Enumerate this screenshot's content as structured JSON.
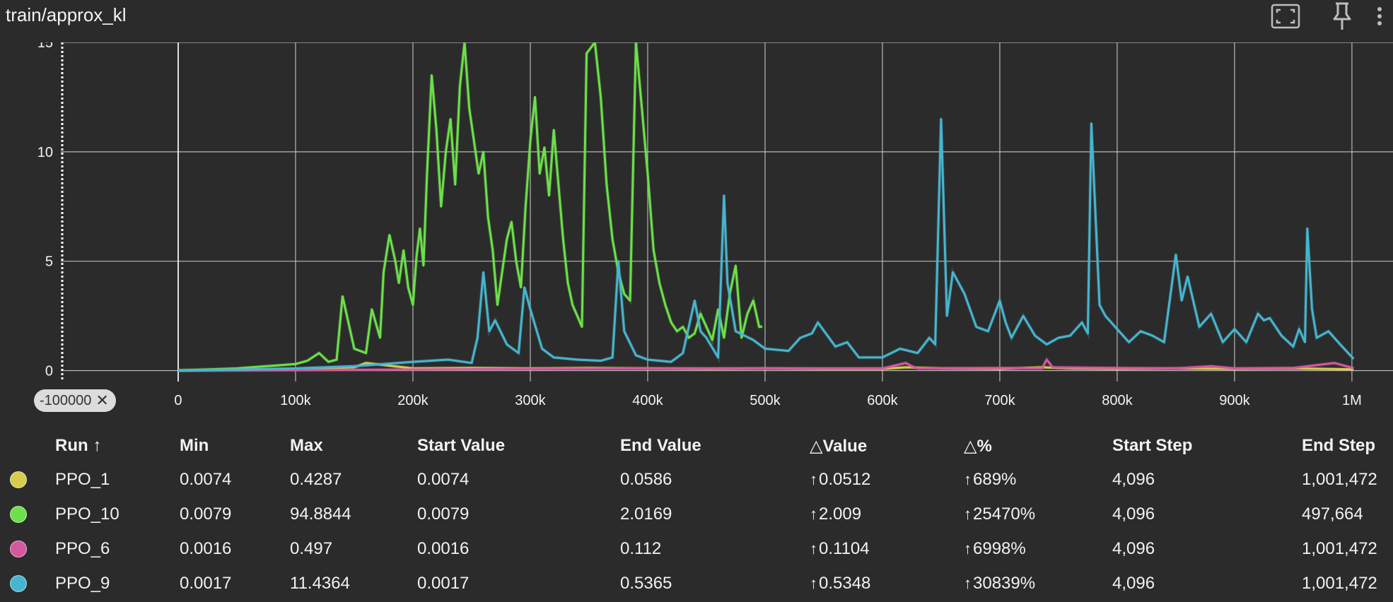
{
  "card": {
    "title": "train/approx_kl",
    "fullscreen_icon": "fullscreen-icon",
    "pin_icon": "pin-icon",
    "more_icon": "more-vertical-icon"
  },
  "x_filter_chip": {
    "label": "-100000",
    "close_icon": "close-icon"
  },
  "chart_data": {
    "type": "line",
    "title": "train/approx_kl",
    "xlabel": "",
    "ylabel": "",
    "xlim": [
      -100000,
      1035000
    ],
    "ylim": [
      -0.5,
      15
    ],
    "x_ticks": [
      0,
      100000,
      200000,
      300000,
      400000,
      500000,
      600000,
      700000,
      800000,
      900000,
      1000000
    ],
    "x_tick_labels": [
      "0",
      "100k",
      "200k",
      "300k",
      "400k",
      "500k",
      "600k",
      "700k",
      "800k",
      "900k",
      "1M"
    ],
    "y_ticks": [
      0,
      5,
      10,
      15
    ],
    "y_tick_labels": [
      "0",
      "5",
      "10",
      "15"
    ],
    "grid": true,
    "colors": {
      "background": "#2b2b2b",
      "grid": "#d0d0d0"
    },
    "series": [
      {
        "name": "PPO_1",
        "color": "#d6cc4f",
        "x": [
          0,
          50000,
          100000,
          150000,
          160000,
          200000,
          250000,
          300000,
          350000,
          400000,
          450000,
          500000,
          550000,
          600000,
          620000,
          650000,
          700000,
          736000,
          760000,
          800000,
          850000,
          900000,
          950000,
          1001472
        ],
        "y": [
          0.007,
          0.03,
          0.05,
          0.15,
          0.35,
          0.1,
          0.12,
          0.1,
          0.12,
          0.1,
          0.08,
          0.1,
          0.08,
          0.08,
          0.15,
          0.1,
          0.08,
          0.15,
          0.1,
          0.08,
          0.1,
          0.08,
          0.1,
          0.0586
        ]
      },
      {
        "name": "PPO_10",
        "color": "#6ce04a",
        "x": [
          0,
          50000,
          100000,
          110000,
          120000,
          128000,
          135000,
          140000,
          150000,
          160000,
          165000,
          172000,
          175000,
          180000,
          185000,
          188000,
          192000,
          196000,
          200000,
          203000,
          206000,
          209000,
          212000,
          216000,
          220000,
          224000,
          228000,
          232000,
          236000,
          240000,
          244000,
          248000,
          252000,
          256000,
          260000,
          264000,
          268000,
          272000,
          276000,
          280000,
          284000,
          288000,
          292000,
          296000,
          300000,
          304000,
          308000,
          312000,
          316000,
          320000,
          324000,
          328000,
          332000,
          336000,
          340000,
          344000,
          348000,
          355000,
          360000,
          365000,
          370000,
          375000,
          380000,
          385000,
          390000,
          395000,
          400000,
          405000,
          410000,
          415000,
          420000,
          425000,
          430000,
          435000,
          440000,
          445000,
          450000,
          455000,
          460000,
          465000,
          470000,
          475000,
          480000,
          485000,
          490000,
          495000,
          497664
        ],
        "y": [
          0.0079,
          0.1,
          0.3,
          0.45,
          0.8,
          0.4,
          0.5,
          3.4,
          1.0,
          0.8,
          2.8,
          1.5,
          4.5,
          6.2,
          5.0,
          4.0,
          5.5,
          3.8,
          3.0,
          5.2,
          6.5,
          4.8,
          9.0,
          13.5,
          11.0,
          7.5,
          10.0,
          11.5,
          8.5,
          13.0,
          15.0,
          12.0,
          10.5,
          9.0,
          10.0,
          7.0,
          5.5,
          3.0,
          4.5,
          6.0,
          6.8,
          5.0,
          3.8,
          7.5,
          10.5,
          12.5,
          9.0,
          10.2,
          8.0,
          11.0,
          8.5,
          6.0,
          4.0,
          3.0,
          2.5,
          2.0,
          14.5,
          15.0,
          12.5,
          8.5,
          6.0,
          4.5,
          3.5,
          3.2,
          15.0,
          12.0,
          9.0,
          5.5,
          4.0,
          3.0,
          2.2,
          1.8,
          2.0,
          1.5,
          1.7,
          2.6,
          2.0,
          1.4,
          2.8,
          1.5,
          3.5,
          4.8,
          1.5,
          2.6,
          3.2,
          2.0,
          2.0169
        ]
      },
      {
        "name": "PPO_6",
        "color": "#d4589d",
        "x": [
          0,
          100000,
          200000,
          300000,
          400000,
          500000,
          600000,
          620000,
          625000,
          630000,
          700000,
          736000,
          740000,
          745000,
          800000,
          850000,
          880000,
          900000,
          950000,
          985000,
          1001472
        ],
        "y": [
          0.0016,
          0.02,
          0.05,
          0.08,
          0.1,
          0.1,
          0.1,
          0.35,
          0.2,
          0.1,
          0.12,
          0.1,
          0.5,
          0.15,
          0.12,
          0.1,
          0.2,
          0.1,
          0.12,
          0.35,
          0.112
        ]
      },
      {
        "name": "PPO_9",
        "color": "#47b5cf",
        "x": [
          0,
          50000,
          100000,
          150000,
          200000,
          230000,
          250000,
          255000,
          260000,
          265000,
          270000,
          280000,
          290000,
          295000,
          300000,
          310000,
          320000,
          340000,
          360000,
          370000,
          375000,
          380000,
          390000,
          400000,
          420000,
          430000,
          440000,
          445000,
          450000,
          460000,
          465000,
          468000,
          475000,
          490000,
          500000,
          520000,
          530000,
          540000,
          545000,
          560000,
          570000,
          580000,
          600000,
          615000,
          630000,
          640000,
          645000,
          650000,
          655000,
          660000,
          670000,
          680000,
          690000,
          700000,
          705000,
          710000,
          720000,
          730000,
          740000,
          750000,
          760000,
          770000,
          775000,
          778000,
          785000,
          790000,
          800000,
          810000,
          820000,
          830000,
          840000,
          850000,
          855000,
          860000,
          870000,
          880000,
          890000,
          900000,
          910000,
          920000,
          925000,
          930000,
          940000,
          950000,
          955000,
          960000,
          962000,
          966000,
          970000,
          980000,
          990000,
          1001472
        ],
        "y": [
          0.0017,
          0.05,
          0.1,
          0.2,
          0.4,
          0.5,
          0.35,
          1.5,
          4.5,
          1.8,
          2.3,
          1.2,
          0.8,
          3.8,
          2.8,
          1.0,
          0.6,
          0.5,
          0.45,
          0.6,
          5.0,
          1.8,
          0.7,
          0.5,
          0.4,
          0.8,
          3.2,
          1.8,
          1.5,
          0.6,
          8.0,
          4.0,
          1.8,
          1.4,
          1.0,
          0.9,
          1.5,
          1.7,
          2.2,
          1.1,
          1.3,
          0.6,
          0.6,
          1.0,
          0.8,
          1.5,
          1.2,
          11.5,
          2.5,
          4.5,
          3.5,
          2.0,
          1.8,
          3.2,
          2.2,
          1.5,
          2.5,
          1.6,
          1.2,
          1.5,
          1.6,
          2.2,
          1.7,
          11.3,
          3.0,
          2.5,
          1.9,
          1.3,
          1.8,
          1.6,
          1.3,
          5.3,
          3.2,
          4.3,
          2.0,
          2.6,
          1.3,
          1.9,
          1.3,
          2.6,
          2.3,
          2.4,
          1.6,
          1.1,
          1.9,
          1.3,
          6.5,
          2.8,
          1.5,
          1.8,
          1.2,
          0.5365
        ]
      }
    ]
  },
  "table": {
    "headers": {
      "run": "Run ↑",
      "min": "Min",
      "max": "Max",
      "start_value": "Start Value",
      "end_value": "End Value",
      "delta_value": "△Value",
      "delta_pct": "△%",
      "start_step": "Start Step",
      "end_step": "End Step"
    },
    "delta_arrow": "↑",
    "rows": [
      {
        "color": "#d6cc4f",
        "run": "PPO_1",
        "min": "0.0074",
        "max": "0.4287",
        "start_value": "0.0074",
        "end_value": "0.0586",
        "delta_value": "0.0512",
        "delta_pct": "689%",
        "start_step": "4,096",
        "end_step": "1,001,472"
      },
      {
        "color": "#6ce04a",
        "run": "PPO_10",
        "min": "0.0079",
        "max": "94.8844",
        "start_value": "0.0079",
        "end_value": "2.0169",
        "delta_value": "2.009",
        "delta_pct": "25470%",
        "start_step": "4,096",
        "end_step": "497,664"
      },
      {
        "color": "#d4589d",
        "run": "PPO_6",
        "min": "0.0016",
        "max": "0.497",
        "start_value": "0.0016",
        "end_value": "0.112",
        "delta_value": "0.1104",
        "delta_pct": "6998%",
        "start_step": "4,096",
        "end_step": "1,001,472"
      },
      {
        "color": "#47b5cf",
        "run": "PPO_9",
        "min": "0.0017",
        "max": "11.4364",
        "start_value": "0.0017",
        "end_value": "0.5365",
        "delta_value": "0.5348",
        "delta_pct": "30839%",
        "start_step": "4,096",
        "end_step": "1,001,472"
      }
    ]
  }
}
